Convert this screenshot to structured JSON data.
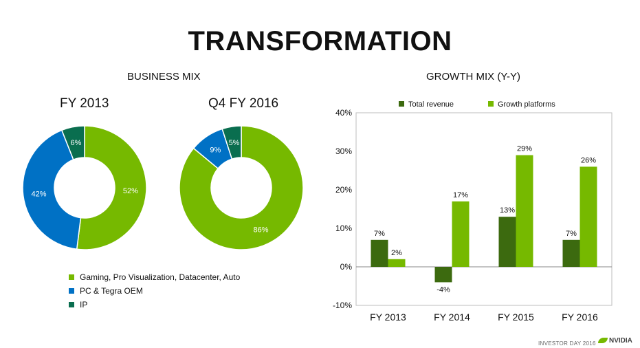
{
  "title": "TRANSFORMATION",
  "business_mix": {
    "heading": "BUSINESS MIX",
    "legend": [
      {
        "label": "Gaming, Pro Visualization, Datacenter, Auto",
        "color": "#76b900"
      },
      {
        "label": "PC & Tegra OEM",
        "color": "#0071c5"
      },
      {
        "label": "IP",
        "color": "#0a6e4f"
      }
    ]
  },
  "growth_mix": {
    "heading": "GROWTH MIX (Y-Y)"
  },
  "footer": {
    "event": "INVESTOR DAY 2016",
    "logo": "NVIDIA"
  },
  "chart_data": [
    {
      "type": "pie",
      "title": "FY 2013",
      "donut": true,
      "labels": [
        "Gaming, Pro Visualization, Datacenter, Auto",
        "PC & Tegra OEM",
        "IP"
      ],
      "values": [
        52,
        42,
        6
      ],
      "value_labels": [
        "52%",
        "42%",
        "6%"
      ],
      "colors": [
        "#76b900",
        "#0071c5",
        "#0a6e4f"
      ]
    },
    {
      "type": "pie",
      "title": "Q4 FY 2016",
      "donut": true,
      "labels": [
        "Gaming, Pro Visualization, Datacenter, Auto",
        "PC & Tegra OEM",
        "IP"
      ],
      "values": [
        86,
        9,
        5
      ],
      "value_labels": [
        "86%",
        "9%",
        "5%"
      ],
      "colors": [
        "#76b900",
        "#0071c5",
        "#0a6e4f"
      ]
    },
    {
      "type": "bar",
      "categories": [
        "FY 2013",
        "FY 2014",
        "FY 2015",
        "FY 2016"
      ],
      "series": [
        {
          "name": "Total revenue",
          "values": [
            7,
            -4,
            13,
            7
          ],
          "labels": [
            "7%",
            "-4%",
            "13%",
            "7%"
          ],
          "color": "#3c6a0f"
        },
        {
          "name": "Growth platforms",
          "values": [
            2,
            17,
            29,
            26
          ],
          "labels": [
            "2%",
            "17%",
            "29%",
            "26%"
          ],
          "color": "#76b900"
        }
      ],
      "ylim": [
        -10,
        40
      ],
      "yticks": [
        "-10%",
        "0%",
        "10%",
        "20%",
        "30%",
        "40%"
      ],
      "ytick_values": [
        -10,
        0,
        10,
        20,
        30,
        40
      ],
      "grid": false,
      "legend_position": "top"
    }
  ]
}
